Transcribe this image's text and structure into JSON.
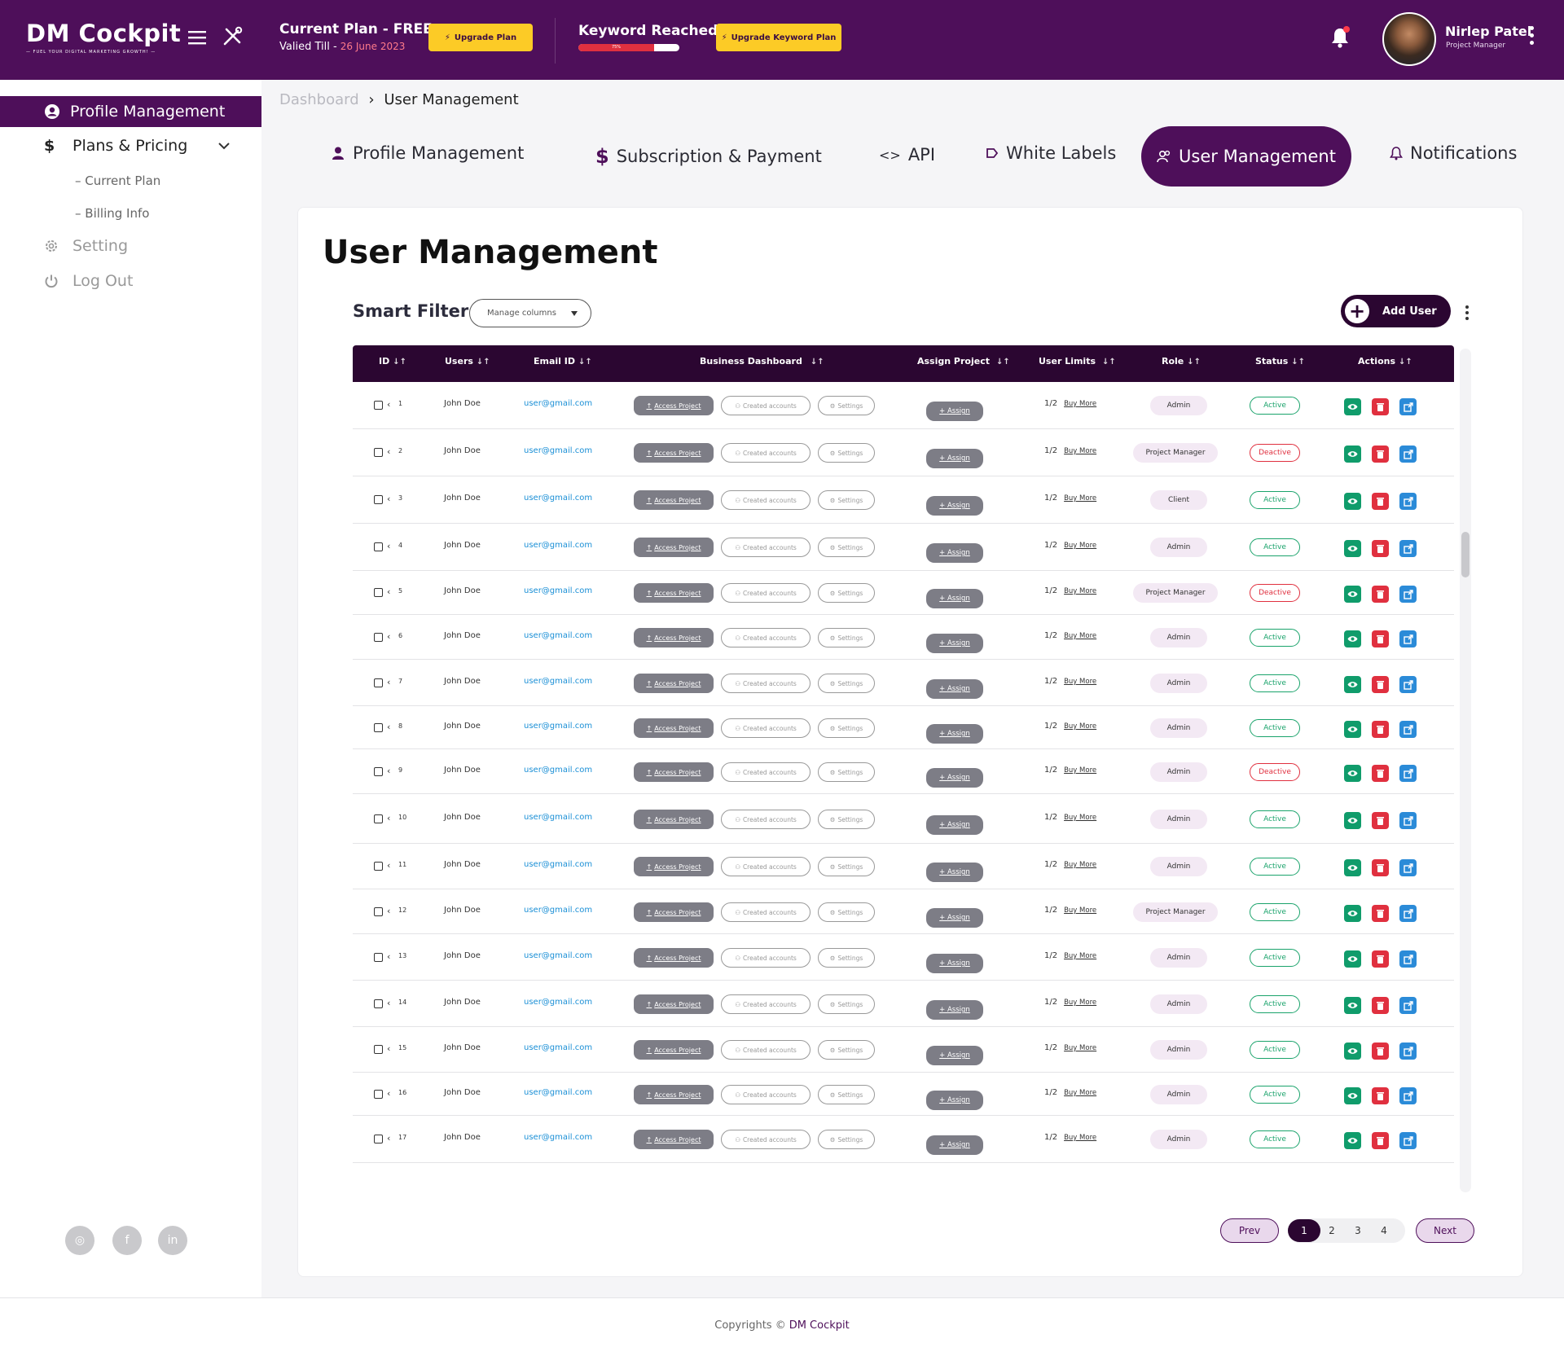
{
  "app": {
    "logo_name": "DM Cockpit",
    "logo_tagline": "— FUEL YOUR DIGITAL MARKETING GROWTH! —",
    "brand_color": "#4e0f5a",
    "dark_color": "#2b0631",
    "accent_yellow": "#fccb26"
  },
  "header": {
    "plan_label": "Current Plan -  FREE",
    "valid_label": "Valied Till - ",
    "valid_date": "26 June 2023",
    "upgrade_plan_label": "Upgrade Plan",
    "keyword_label": "Keyword Reached",
    "keyword_progress_text": "75%",
    "keyword_progress_percent": 75,
    "upgrade_keyword_label": "Upgrade Keyword Plan",
    "user_name": "Nirlep Patel",
    "user_role": "Project Manager",
    "icons": [
      "menu-icon",
      "tools-icon",
      "bell-icon",
      "kebab-icon"
    ]
  },
  "sidebar": {
    "profile_management": "Profile Management",
    "plans_pricing": "Plans & Pricing",
    "current_plan": "Current Plan",
    "billing_info": "Billing Info",
    "setting": "Setting",
    "log_out": "Log Out",
    "social": [
      "instagram-icon",
      "facebook-icon",
      "linkedin-icon"
    ]
  },
  "breadcrumb": {
    "root": "Dashboard",
    "sep": "›",
    "current": "User Management"
  },
  "tabs": {
    "profile": "Profile Management",
    "subscription": "Subscription & Payment",
    "api": "API",
    "white_labels": "White Labels",
    "user_management": "User Management",
    "notifications": "Notifications"
  },
  "main": {
    "title": "User Management",
    "smart_filter": "Smart Filter",
    "manage_columns": "Manage columns",
    "add_user": "Add User"
  },
  "table": {
    "columns": [
      "ID",
      "Users",
      "Email ID",
      "Business Dashboard",
      "Assign Project",
      "User Limits",
      "Role",
      "Status",
      "Actions"
    ],
    "access_project_label": "Access Project",
    "created_accounts_label": "Created accounts",
    "settings_label": "Settings",
    "assign_label": "+ Assign",
    "limit_label": "1/2",
    "buy_more_label": "Buy More",
    "rows": [
      {
        "id": "1",
        "user": "John Doe",
        "email": "user@gmail.com",
        "role": "Admin",
        "status": "Active"
      },
      {
        "id": "2",
        "user": "John Doe",
        "email": "user@gmail.com",
        "role": "Project Manager",
        "status": "Deactive"
      },
      {
        "id": "3",
        "user": "John Doe",
        "email": "user@gmail.com",
        "role": "Client",
        "status": "Active"
      },
      {
        "id": "4",
        "user": "John Doe",
        "email": "user@gmail.com",
        "role": "Admin",
        "status": "Active"
      },
      {
        "id": "5",
        "user": "John Doe",
        "email": "user@gmail.com",
        "role": "Project Manager",
        "status": "Deactive"
      },
      {
        "id": "6",
        "user": "John Doe",
        "email": "user@gmail.com",
        "role": "Admin",
        "status": "Active"
      },
      {
        "id": "7",
        "user": "John Doe",
        "email": "user@gmail.com",
        "role": "Admin",
        "status": "Active"
      },
      {
        "id": "8",
        "user": "John Doe",
        "email": "user@gmail.com",
        "role": "Admin",
        "status": "Active"
      },
      {
        "id": "9",
        "user": "John Doe",
        "email": "user@gmail.com",
        "role": "Admin",
        "status": "Deactive"
      },
      {
        "id": "10",
        "user": "John Doe",
        "email": "user@gmail.com",
        "role": "Admin",
        "status": "Active"
      },
      {
        "id": "11",
        "user": "John Doe",
        "email": "user@gmail.com",
        "role": "Admin",
        "status": "Active"
      },
      {
        "id": "12",
        "user": "John Doe",
        "email": "user@gmail.com",
        "role": "Project Manager",
        "status": "Active"
      },
      {
        "id": "13",
        "user": "John Doe",
        "email": "user@gmail.com",
        "role": "Admin",
        "status": "Active"
      },
      {
        "id": "14",
        "user": "John Doe",
        "email": "user@gmail.com",
        "role": "Admin",
        "status": "Active"
      },
      {
        "id": "15",
        "user": "John Doe",
        "email": "user@gmail.com",
        "role": "Admin",
        "status": "Active"
      },
      {
        "id": "16",
        "user": "John Doe",
        "email": "user@gmail.com",
        "role": "Admin",
        "status": "Active"
      },
      {
        "id": "17",
        "user": "John Doe",
        "email": "user@gmail.com",
        "role": "Admin",
        "status": "Active"
      }
    ]
  },
  "pagination": {
    "prev": "Prev",
    "pages": [
      "1",
      "2",
      "3",
      "4"
    ],
    "current_page": "1",
    "next": "Next"
  },
  "footer": {
    "copyright": "Copyrights ©",
    "brand": "DM Cockpit"
  }
}
